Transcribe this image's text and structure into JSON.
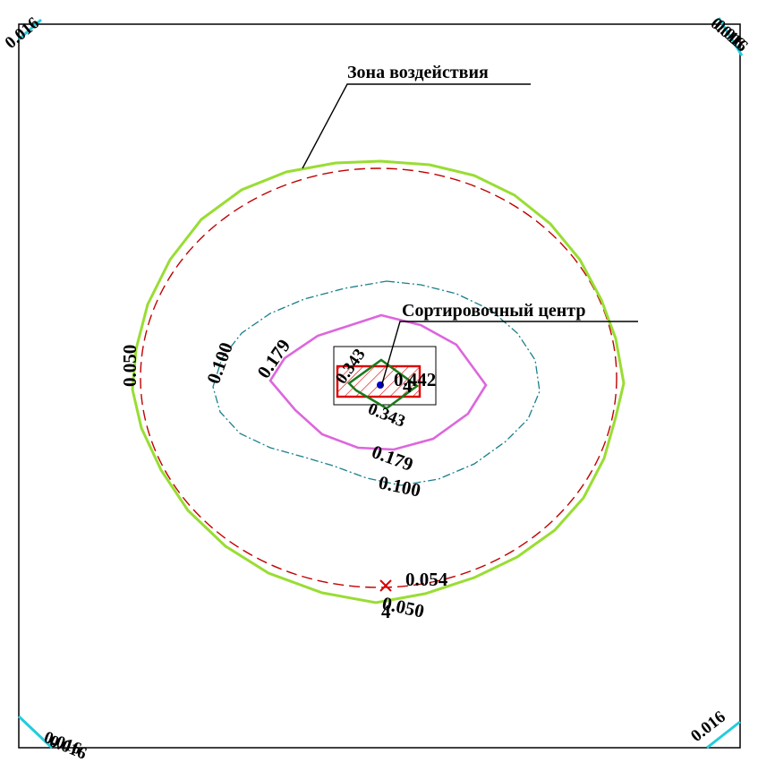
{
  "annotations": {
    "impact_zone": "Зона воздействия",
    "sorting_center": "Сортировочный центр"
  },
  "contour_labels": {
    "c050_left": "0.050",
    "c050_bottom": "0.050",
    "c100_left": "0.100",
    "c100_bottom": "0.100",
    "c179_left": "0.179",
    "c179_bottom": "0.179",
    "c343_top": "0.343",
    "c343_bottom": "0.343",
    "c442": "0.442",
    "c4": "4",
    "c054": "0.054"
  },
  "corner_labels": {
    "top_left": "0.016",
    "top_right": "0.016",
    "top_right_overlap": "0.016",
    "bottom_left": "0.016",
    "bottom_left_overlap": "0.016",
    "bottom_right": "0.016"
  },
  "colors": {
    "frame": "#000000",
    "impact_zone_line": "#c00000",
    "contour_050": "#99dd33",
    "contour_100": "#1a7f8a",
    "contour_179": "#dd66dd",
    "contour_343": "#1a7a1a",
    "source_outline": "#dd0000",
    "corner_marks": "#22ccdd",
    "max_point": "#dd0000",
    "center_point": "#0000cc"
  }
}
